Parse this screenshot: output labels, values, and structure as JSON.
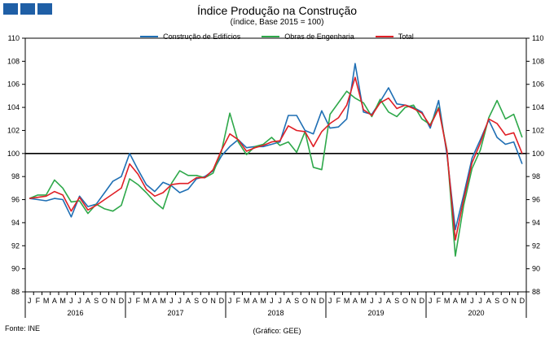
{
  "header": {
    "title": "Índice Produção na Construção",
    "subtitle": "(índice, Base 2015 = 100)"
  },
  "footer": {
    "source": "Fonte: INE",
    "credit": "(Gráfico: GEE)"
  },
  "chart_data": {
    "type": "line",
    "title": "Índice Produção na Construção",
    "subtitle": "(índice, Base 2015 = 100)",
    "ylim": [
      88,
      110
    ],
    "yticks": [
      88,
      90,
      92,
      94,
      96,
      98,
      100,
      102,
      104,
      106,
      108,
      110
    ],
    "reference_line": 100,
    "grid": false,
    "legend": "top-center",
    "month_labels": [
      "J",
      "F",
      "M",
      "A",
      "M",
      "J",
      "J",
      "A",
      "S",
      "O",
      "N",
      "D",
      "J",
      "F",
      "M",
      "A",
      "M",
      "J",
      "J",
      "A",
      "S",
      "O",
      "N",
      "D",
      "J",
      "F",
      "M",
      "A",
      "M",
      "J",
      "J",
      "A",
      "S",
      "O",
      "N",
      "D",
      "J",
      "F",
      "M",
      "A",
      "M",
      "J",
      "J",
      "A",
      "S",
      "O",
      "N",
      "D",
      "J",
      "F",
      "M",
      "A",
      "M",
      "J",
      "J",
      "A",
      "S",
      "O",
      "N",
      "D"
    ],
    "years": [
      "2016",
      "2017",
      "2018",
      "2019",
      "2020"
    ],
    "series": [
      {
        "name": "Construção de Edifícios",
        "color": "#1f6fb4",
        "values": [
          96.1,
          96.0,
          95.9,
          96.1,
          96.0,
          94.5,
          96.3,
          95.4,
          95.6,
          96.6,
          97.6,
          98.0,
          100.0,
          98.6,
          97.3,
          96.7,
          97.5,
          97.2,
          96.6,
          96.9,
          97.8,
          98.0,
          98.5,
          99.8,
          100.6,
          101.2,
          100.5,
          100.6,
          100.6,
          100.8,
          101.0,
          103.3,
          103.3,
          102.0,
          101.7,
          103.7,
          102.2,
          102.3,
          103.0,
          107.8,
          103.6,
          103.4,
          104.5,
          105.7,
          104.3,
          104.2,
          104.0,
          103.6,
          102.2,
          104.6,
          99.9,
          93.4,
          96.4,
          99.6,
          101.2,
          102.9,
          101.4,
          100.8,
          101.0,
          99.1
        ]
      },
      {
        "name": "Obras de Engenharia",
        "color": "#2ea84a",
        "values": [
          96.1,
          96.4,
          96.4,
          97.7,
          97.0,
          95.8,
          95.9,
          94.8,
          95.6,
          95.2,
          95.0,
          95.5,
          97.8,
          97.3,
          96.6,
          95.8,
          95.2,
          97.4,
          98.5,
          98.1,
          98.1,
          97.9,
          98.3,
          100.2,
          103.5,
          101.0,
          99.9,
          100.6,
          100.8,
          101.4,
          100.7,
          101.0,
          100.1,
          101.9,
          98.8,
          98.6,
          103.4,
          104.4,
          105.4,
          104.8,
          104.4,
          103.2,
          104.7,
          103.6,
          103.2,
          104.0,
          104.2,
          103.0,
          102.5,
          104.0,
          100.3,
          91.1,
          95.5,
          98.7,
          100.3,
          103.1,
          104.6,
          103.0,
          103.4,
          101.4
        ]
      },
      {
        "name": "Total",
        "color": "#e01f26",
        "values": [
          96.1,
          96.2,
          96.3,
          96.7,
          96.4,
          95.0,
          96.2,
          95.1,
          95.5,
          96.0,
          96.5,
          97.0,
          99.1,
          98.2,
          96.9,
          96.3,
          96.6,
          97.3,
          97.4,
          97.4,
          97.9,
          97.9,
          98.6,
          100.3,
          101.7,
          101.2,
          100.2,
          100.5,
          100.7,
          101.0,
          101.1,
          102.4,
          102.0,
          101.9,
          100.6,
          101.9,
          102.6,
          103.1,
          104.2,
          106.6,
          103.8,
          103.3,
          104.4,
          104.8,
          103.9,
          104.2,
          103.9,
          103.5,
          102.4,
          103.9,
          100.2,
          92.5,
          96.0,
          99.2,
          100.9,
          103.0,
          102.6,
          101.6,
          101.8,
          100.0
        ]
      }
    ]
  }
}
